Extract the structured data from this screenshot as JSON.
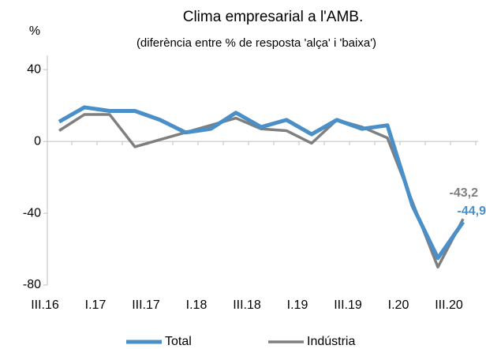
{
  "chart_data": {
    "type": "line",
    "title": "Clima empresarial a l'AMB.",
    "subtitle": "(diferència entre % de resposta 'alça' i 'baixa')",
    "y_label": "%",
    "categories": [
      "III.16",
      null,
      "I.17",
      null,
      "III.17",
      null,
      "I.18",
      null,
      "III.18",
      null,
      "I.19",
      null,
      "III.19",
      null,
      "I.20",
      null,
      "III.20"
    ],
    "series": [
      {
        "name": "Total",
        "color": "#4a8fc7",
        "values": [
          11,
          19,
          17,
          17,
          12,
          5,
          7,
          16,
          8,
          12,
          4,
          12,
          7,
          9,
          -36,
          -65,
          -44.9
        ],
        "value_labels": [
          null,
          null,
          null,
          null,
          null,
          null,
          null,
          null,
          null,
          null,
          null,
          null,
          null,
          null,
          null,
          null,
          "-44,9"
        ]
      },
      {
        "name": "Indústria",
        "color": "#7f7f7f",
        "values": [
          6,
          15,
          15,
          -3,
          1,
          5,
          9,
          13,
          7,
          6,
          -1,
          12,
          8,
          2,
          -34,
          -70,
          -43.2
        ],
        "value_labels": [
          null,
          null,
          null,
          null,
          null,
          null,
          null,
          null,
          null,
          null,
          null,
          null,
          null,
          null,
          null,
          null,
          "-43,2"
        ]
      }
    ],
    "ylim": [
      -80,
      48
    ],
    "yticks": [
      -80,
      -40,
      0,
      40
    ],
    "legend": "bottom"
  }
}
